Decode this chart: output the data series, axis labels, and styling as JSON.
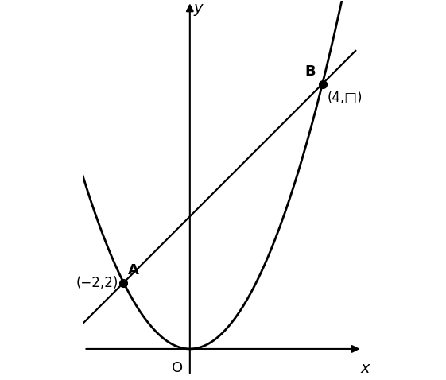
{
  "parabola_coeff": 0.5,
  "line_slope": 1,
  "line_intercept": 4,
  "point_A": [
    -2,
    2
  ],
  "point_B": [
    4,
    8
  ],
  "label_A": "A",
  "label_B": "B",
  "coord_A": "(−2,2)",
  "coord_B": "(4,□)",
  "x_range": [
    -3.2,
    5.2
  ],
  "y_range": [
    -0.8,
    10.5
  ],
  "axis_color": "#000000",
  "curve_color": "#000000",
  "line_color": "#000000",
  "point_color": "#000000",
  "background_color": "#ffffff",
  "xlabel": "x",
  "ylabel": "y",
  "origin_label": "O",
  "lw_curve": 2.0,
  "lw_line": 1.6,
  "lw_axis": 1.5,
  "point_size": 7,
  "figsize": [
    5.61,
    4.78
  ],
  "dpi": 100
}
